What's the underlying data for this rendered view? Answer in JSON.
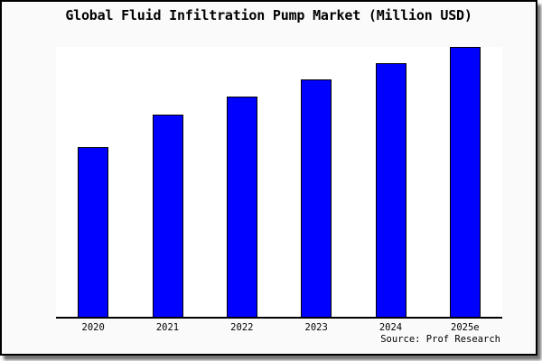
{
  "page": {
    "title": "Global Fluid Infiltration Pump Market (Million USD)",
    "source": "Source: Prof Research"
  },
  "colors": {
    "bar_fill": "#0000ff",
    "bar_border": "#000000",
    "page_bg": "#fafafa",
    "plot_bg": "#ffffff",
    "frame": "#000000"
  },
  "chart_data": {
    "type": "bar",
    "title": "Global Fluid Infiltration Pump Market (Million USD)",
    "categories": [
      "2020",
      "2021",
      "2022",
      "2023",
      "2024",
      "2025e"
    ],
    "values": [
      63,
      75,
      81.5,
      88,
      94,
      100
    ],
    "values_note": "y-axis has no tick labels; values are relative estimates from bar heights with 2025e normalized to 100",
    "xlabel": "",
    "ylabel": "",
    "ylim": [
      0,
      100
    ],
    "grid": false,
    "legend": false,
    "source_label": "Source: Prof Research"
  }
}
